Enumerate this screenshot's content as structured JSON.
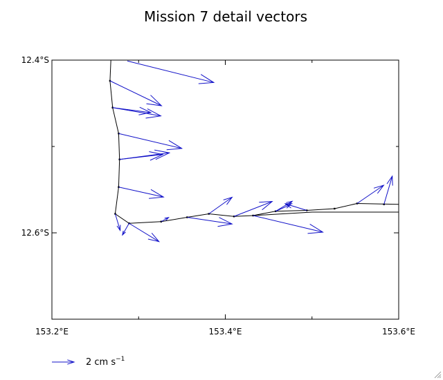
{
  "chart_data": {
    "type": "vector",
    "title": "Mission 7 detail vectors",
    "xlim": [
      153.2,
      153.6
    ],
    "ylim": [
      -12.7,
      -12.4
    ],
    "x_ticks": [
      {
        "value": 153.2,
        "label": "153.2°E"
      },
      {
        "value": 153.4,
        "label": "153.4°E"
      },
      {
        "value": 153.6,
        "label": "153.6°E"
      }
    ],
    "x_minor": [
      153.3,
      153.5
    ],
    "y_ticks": [
      {
        "value": -12.4,
        "label": "12.4°S"
      },
      {
        "value": -12.6,
        "label": "12.6°S"
      }
    ],
    "y_minor": [
      -12.5,
      -12.7
    ],
    "track": [
      {
        "lon": 153.268,
        "lat": -12.4
      },
      {
        "lon": 153.267,
        "lat": -12.424
      },
      {
        "lon": 153.27,
        "lat": -12.455
      },
      {
        "lon": 153.277,
        "lat": -12.485
      },
      {
        "lon": 153.278,
        "lat": -12.515
      },
      {
        "lon": 153.277,
        "lat": -12.547
      },
      {
        "lon": 153.273,
        "lat": -12.578
      },
      {
        "lon": 153.289,
        "lat": -12.589
      },
      {
        "lon": 153.326,
        "lat": -12.587
      },
      {
        "lon": 153.356,
        "lat": -12.582
      },
      {
        "lon": 153.381,
        "lat": -12.578
      },
      {
        "lon": 153.41,
        "lat": -12.581
      },
      {
        "lon": 153.432,
        "lat": -12.58
      },
      {
        "lon": 153.458,
        "lat": -12.575
      },
      {
        "lon": 153.494,
        "lat": -12.574
      },
      {
        "lon": 153.526,
        "lat": -12.572
      },
      {
        "lon": 153.552,
        "lat": -12.566
      },
      {
        "lon": 153.6,
        "lat": -12.567
      }
    ],
    "track_secondary": [
      {
        "lon": 153.432,
        "lat": -12.58
      },
      {
        "lon": 153.5,
        "lat": -12.576
      },
      {
        "lon": 153.56,
        "lat": -12.576
      },
      {
        "lon": 153.6,
        "lat": -12.576
      }
    ],
    "stations": [
      {
        "lon": 153.267,
        "lat": -12.424
      },
      {
        "lon": 153.27,
        "lat": -12.455
      },
      {
        "lon": 153.277,
        "lat": -12.485
      },
      {
        "lon": 153.278,
        "lat": -12.515
      },
      {
        "lon": 153.277,
        "lat": -12.547
      },
      {
        "lon": 153.273,
        "lat": -12.578
      },
      {
        "lon": 153.289,
        "lat": -12.589
      },
      {
        "lon": 153.326,
        "lat": -12.587
      },
      {
        "lon": 153.356,
        "lat": -12.582
      },
      {
        "lon": 153.381,
        "lat": -12.578
      },
      {
        "lon": 153.41,
        "lat": -12.581
      },
      {
        "lon": 153.432,
        "lat": -12.58
      },
      {
        "lon": 153.458,
        "lat": -12.575
      },
      {
        "lon": 153.494,
        "lat": -12.574
      },
      {
        "lon": 153.526,
        "lat": -12.572
      },
      {
        "lon": 153.552,
        "lat": -12.566
      },
      {
        "lon": 153.583,
        "lat": -12.567
      }
    ],
    "vectors": [
      {
        "lon": 153.287,
        "lat": -12.401,
        "u": 5.2,
        "v": -1.3
      },
      {
        "lon": 153.267,
        "lat": -12.424,
        "u": 3.1,
        "v": -1.5
      },
      {
        "lon": 153.27,
        "lat": -12.455,
        "u": 2.3,
        "v": -0.3
      },
      {
        "lon": 153.27,
        "lat": -12.455,
        "u": 2.9,
        "v": -0.5
      },
      {
        "lon": 153.277,
        "lat": -12.485,
        "u": 3.8,
        "v": -0.9
      },
      {
        "lon": 153.278,
        "lat": -12.515,
        "u": 3.0,
        "v": 0.4
      },
      {
        "lon": 153.278,
        "lat": -12.515,
        "u": 2.6,
        "v": 0.3
      },
      {
        "lon": 153.277,
        "lat": -12.547,
        "u": 2.7,
        "v": -0.6
      },
      {
        "lon": 153.273,
        "lat": -12.578,
        "u": 0.3,
        "v": -1.0
      },
      {
        "lon": 153.289,
        "lat": -12.589,
        "u": 1.8,
        "v": -1.1
      },
      {
        "lon": 153.289,
        "lat": -12.589,
        "u": -0.4,
        "v": -0.7
      },
      {
        "lon": 153.326,
        "lat": -12.587,
        "u": 0.45,
        "v": 0.25
      },
      {
        "lon": 153.356,
        "lat": -12.582,
        "u": 2.7,
        "v": -0.4
      },
      {
        "lon": 153.381,
        "lat": -12.578,
        "u": 1.4,
        "v": 1.0
      },
      {
        "lon": 153.41,
        "lat": -12.581,
        "u": 2.3,
        "v": 0.9
      },
      {
        "lon": 153.458,
        "lat": -12.575,
        "u": 1.0,
        "v": 0.6
      },
      {
        "lon": 153.458,
        "lat": -12.575,
        "u": 0.9,
        "v": 0.4
      },
      {
        "lon": 153.494,
        "lat": -12.574,
        "u": -1.3,
        "v": 0.4
      },
      {
        "lon": 153.432,
        "lat": -12.58,
        "u": 4.2,
        "v": -1.0
      },
      {
        "lon": 153.552,
        "lat": -12.566,
        "u": 1.6,
        "v": 1.1
      },
      {
        "lon": 153.583,
        "lat": -12.567,
        "u": 0.5,
        "v": 1.7
      }
    ],
    "legend": {
      "length_cm_s": 2,
      "label": "2 cm s",
      "exponent": "−1",
      "placement": "bottom-left"
    },
    "vector_color": "#1010c8",
    "grid": false
  }
}
